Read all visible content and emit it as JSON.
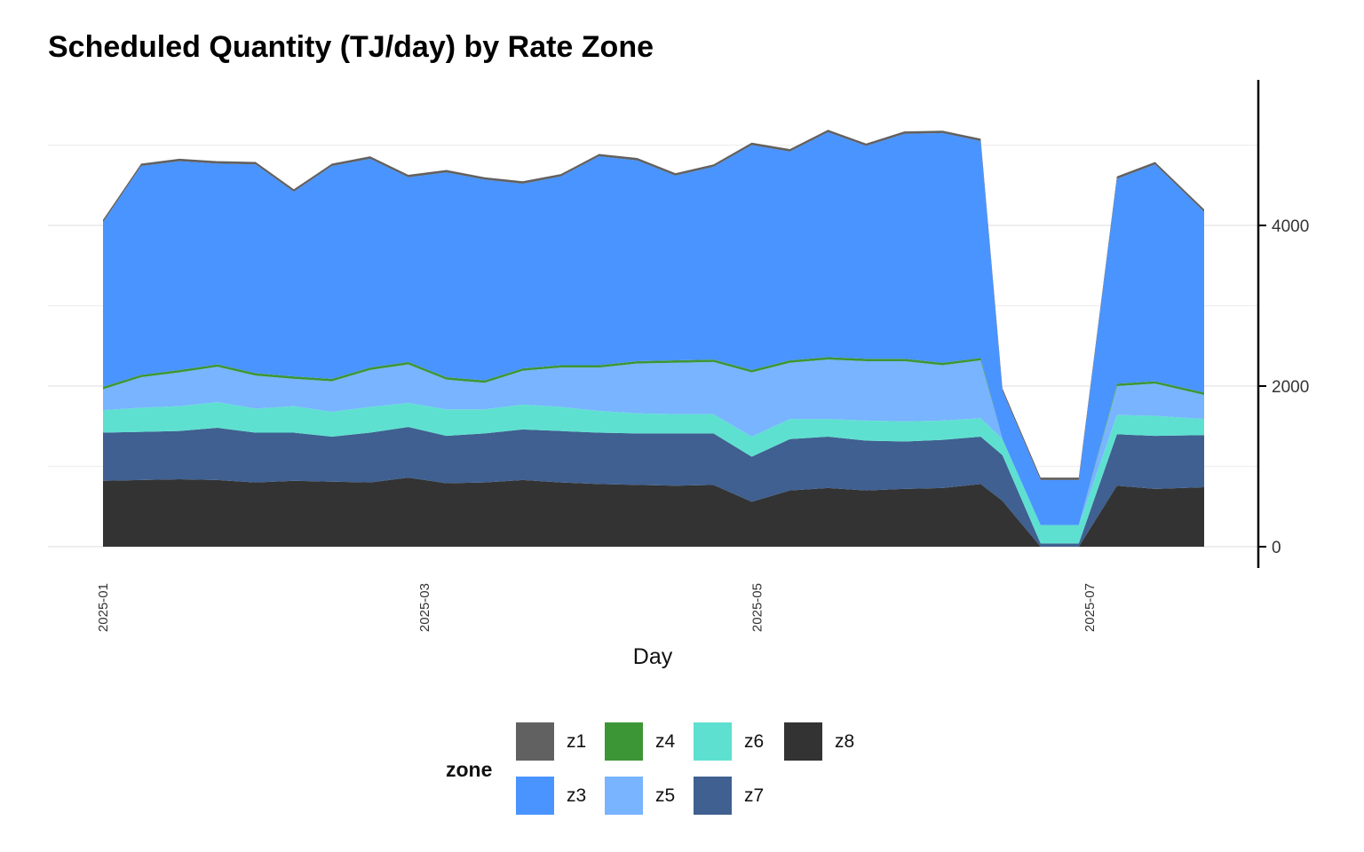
{
  "chart_data": {
    "type": "area",
    "stacked": true,
    "title": "Scheduled Quantity (TJ/day) by Rate Zone",
    "xlabel": "Day",
    "ylabel": "",
    "x_ticks": [
      "2025-01",
      "2025-03",
      "2025-05",
      "2025-07"
    ],
    "y_ticks": [
      0,
      2000,
      4000
    ],
    "ylim": [
      -250,
      5700
    ],
    "xlim": [
      "2025-01-01",
      "2025-07-22"
    ],
    "grid": true,
    "y_axis_position": "right",
    "legend": {
      "title": "zone",
      "position": "bottom"
    },
    "x": [
      "2025-01-01",
      "2025-01-08",
      "2025-01-15",
      "2025-01-22",
      "2025-01-29",
      "2025-02-05",
      "2025-02-12",
      "2025-02-19",
      "2025-02-26",
      "2025-03-05",
      "2025-03-12",
      "2025-03-19",
      "2025-03-26",
      "2025-04-02",
      "2025-04-09",
      "2025-04-16",
      "2025-04-23",
      "2025-04-30",
      "2025-05-07",
      "2025-05-14",
      "2025-05-21",
      "2025-05-28",
      "2025-06-04",
      "2025-06-11",
      "2025-06-15",
      "2025-06-22",
      "2025-06-29",
      "2025-07-06",
      "2025-07-13",
      "2025-07-22"
    ],
    "series": [
      {
        "name": "z8",
        "color": "#333333",
        "values": [
          820,
          830,
          840,
          830,
          800,
          820,
          810,
          800,
          860,
          790,
          800,
          830,
          800,
          780,
          770,
          760,
          770,
          560,
          700,
          730,
          700,
          720,
          730,
          780,
          570,
          0,
          0,
          760,
          720,
          740
        ]
      },
      {
        "name": "z7",
        "color": "#3f6090",
        "values": [
          600,
          600,
          600,
          650,
          620,
          600,
          560,
          620,
          630,
          590,
          610,
          630,
          640,
          640,
          640,
          650,
          640,
          560,
          640,
          640,
          620,
          590,
          600,
          590,
          570,
          40,
          40,
          640,
          660,
          650
        ]
      },
      {
        "name": "z6",
        "color": "#5ee0d0",
        "values": [
          280,
          300,
          310,
          320,
          300,
          330,
          310,
          320,
          300,
          330,
          300,
          310,
          300,
          270,
          250,
          240,
          240,
          250,
          250,
          220,
          250,
          250,
          240,
          230,
          200,
          230,
          230,
          240,
          250,
          200
        ]
      },
      {
        "name": "z5",
        "color": "#78b4ff",
        "values": [
          260,
          380,
          420,
          440,
          410,
          340,
          380,
          460,
          480,
          370,
          330,
          420,
          490,
          540,
          620,
          640,
          650,
          800,
          700,
          740,
          740,
          750,
          690,
          720,
          0,
          0,
          0,
          360,
          400,
          300
        ]
      },
      {
        "name": "z4",
        "color": "#3d9636",
        "values": [
          30,
          30,
          30,
          30,
          30,
          30,
          30,
          30,
          30,
          30,
          30,
          30,
          30,
          30,
          30,
          30,
          30,
          30,
          30,
          30,
          30,
          30,
          30,
          30,
          0,
          0,
          0,
          30,
          30,
          30
        ]
      },
      {
        "name": "z3",
        "color": "#4a94ff",
        "values": [
          2050,
          2600,
          2600,
          2500,
          2600,
          2300,
          2650,
          2600,
          2300,
          2550,
          2500,
          2300,
          2350,
          2600,
          2500,
          2300,
          2400,
          2800,
          2600,
          2800,
          2650,
          2800,
          2860,
          2700,
          600,
          560,
          560,
          2550,
          2700,
          2250
        ]
      },
      {
        "name": "z1",
        "color": "#616161",
        "values": [
          30,
          30,
          30,
          30,
          30,
          30,
          30,
          30,
          30,
          30,
          30,
          30,
          30,
          30,
          30,
          30,
          30,
          30,
          30,
          30,
          30,
          30,
          30,
          30,
          30,
          30,
          30,
          30,
          30,
          30
        ]
      }
    ]
  },
  "legend_items": [
    {
      "label": "z1",
      "color": "#616161"
    },
    {
      "label": "z4",
      "color": "#3d9636"
    },
    {
      "label": "z6",
      "color": "#5ee0d0"
    },
    {
      "label": "z8",
      "color": "#333333"
    },
    {
      "label": "z3",
      "color": "#4a94ff"
    },
    {
      "label": "z5",
      "color": "#78b4ff"
    },
    {
      "label": "z7",
      "color": "#3f6090"
    }
  ]
}
